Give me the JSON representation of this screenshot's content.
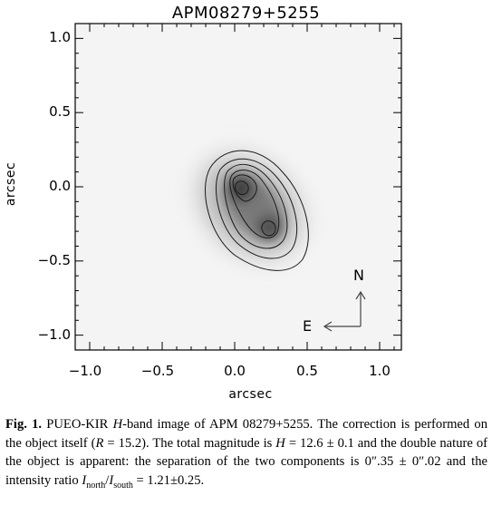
{
  "figure": {
    "title": "APM08279+5255",
    "xlabel": "arcsec",
    "ylabel": "arcsec",
    "yticks": [
      "1.0",
      "0.5",
      "0.0",
      "−0.5",
      "−1.0"
    ],
    "xticks": [
      "−1.0",
      "−0.5",
      "0.0",
      "0.5",
      "1.0"
    ],
    "compass": {
      "north": "N",
      "east": "E"
    },
    "colors": {
      "peak": "#2a2a2a",
      "background": "#f4f4f4",
      "contour": "#1a1a1a"
    }
  },
  "chart_data": {
    "type": "heatmap",
    "title": "APM08279+5255",
    "xlabel": "arcsec",
    "ylabel": "arcsec",
    "xlim": [
      -1.1,
      1.15
    ],
    "ylim": [
      -1.1,
      1.1
    ],
    "xticks": [
      -1.0,
      -0.5,
      0.0,
      0.5,
      1.0
    ],
    "yticks": [
      1.0,
      0.5,
      0.0,
      -0.5,
      -1.0
    ],
    "sources": [
      {
        "x": 0.0,
        "y": 0.0
      },
      {
        "x": 0.2,
        "y": -0.3
      }
    ],
    "grid": false
  },
  "caption": {
    "label": "Fig. 1.",
    "p1": " PUEO-KIR ",
    "H": "H",
    "p2": "-band image of APM 08279+5255. The correction is performed on the object itself (",
    "R": "R",
    "p3": " = 15.2). The total magnitude is ",
    "H2": "H",
    "p4": " = 12.6 ± 0.1 and the double nature of the object is apparent: the separation of the two components is 0″.35 ± 0″.02 and the intensity ratio ",
    "I1": "I",
    "sub1": "north",
    "slash": "/",
    "I2": "I",
    "sub2": "south",
    "p5": " = 1.21±0.25."
  }
}
